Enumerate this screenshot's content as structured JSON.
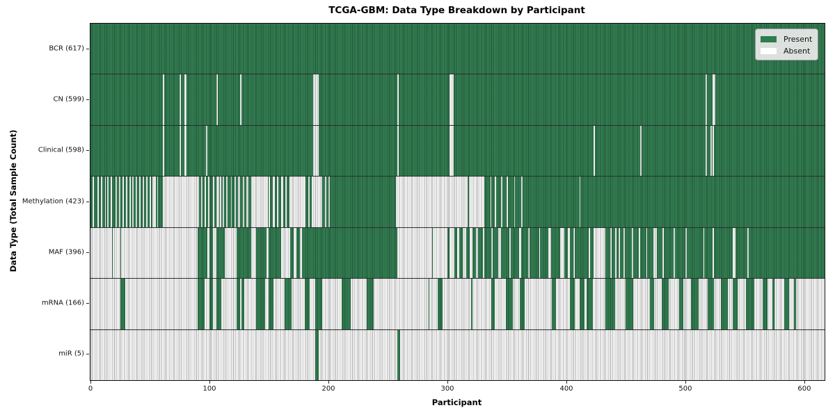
{
  "title": "TCGA-GBM: Data Type Breakdown by Participant",
  "x_axis": {
    "label": "Participant",
    "ticks": [
      0,
      100,
      200,
      300,
      400,
      500,
      600
    ]
  },
  "y_axis": {
    "label": "Data Type (Total Sample Count)"
  },
  "legend": {
    "items": [
      {
        "label": "Present",
        "state": "present"
      },
      {
        "label": "Absent",
        "state": "absent"
      }
    ]
  },
  "colors": {
    "present": "#2e7d4f",
    "absent": "#ffffff",
    "spine": "#0a0a0a",
    "legend_bg": "#eaeaea"
  },
  "chart_data": {
    "type": "heatmap",
    "title": "TCGA-GBM: Data Type Breakdown by Participant",
    "xlabel": "Participant",
    "ylabel": "Data Type (Total Sample Count)",
    "x_range": [
      0,
      617
    ],
    "n_participants": 617,
    "legend_position": "upper right",
    "states": [
      "Present",
      "Absent"
    ],
    "rows": [
      {
        "name": "BCR",
        "label": "BCR (617)",
        "present_count": 617,
        "base": "present",
        "runs_absent": []
      },
      {
        "name": "CN",
        "label": "CN (599)",
        "present_count": 599,
        "base": "present",
        "runs_absent": [
          [
            61,
            1
          ],
          [
            75,
            1
          ],
          [
            79,
            2
          ],
          [
            106,
            1
          ],
          [
            126,
            1
          ],
          [
            187,
            5
          ],
          [
            258,
            1
          ],
          [
            302,
            3
          ],
          [
            517,
            1
          ],
          [
            523,
            2
          ]
        ]
      },
      {
        "name": "Clinical",
        "label": "Clinical (598)",
        "present_count": 598,
        "base": "present",
        "runs_absent": [
          [
            61,
            1
          ],
          [
            75,
            1
          ],
          [
            79,
            2
          ],
          [
            97,
            1
          ],
          [
            187,
            5
          ],
          [
            258,
            1
          ],
          [
            302,
            3
          ],
          [
            423,
            1
          ],
          [
            462,
            1
          ],
          [
            517,
            1
          ],
          [
            521,
            1
          ],
          [
            523,
            1
          ]
        ]
      },
      {
        "name": "Methylation",
        "label": "Methylation (423)",
        "present_count": 423,
        "base": "present",
        "runs_absent": [
          [
            2,
            1
          ],
          [
            6,
            1
          ],
          [
            9,
            1
          ],
          [
            12,
            1
          ],
          [
            14,
            1
          ],
          [
            17,
            1
          ],
          [
            21,
            1
          ],
          [
            24,
            1
          ],
          [
            27,
            1
          ],
          [
            30,
            1
          ],
          [
            33,
            1
          ],
          [
            35,
            1
          ],
          [
            38,
            1
          ],
          [
            41,
            1
          ],
          [
            44,
            1
          ],
          [
            47,
            1
          ],
          [
            50,
            1
          ],
          [
            52,
            3
          ],
          [
            56,
            1
          ],
          [
            61,
            30
          ],
          [
            93,
            1
          ],
          [
            96,
            1
          ],
          [
            99,
            1
          ],
          [
            103,
            1
          ],
          [
            106,
            2
          ],
          [
            109,
            1
          ],
          [
            111,
            1
          ],
          [
            114,
            1
          ],
          [
            118,
            1
          ],
          [
            121,
            1
          ],
          [
            124,
            2
          ],
          [
            128,
            1
          ],
          [
            131,
            2
          ],
          [
            135,
            14
          ],
          [
            150,
            1
          ],
          [
            153,
            2
          ],
          [
            157,
            1
          ],
          [
            160,
            2
          ],
          [
            164,
            1
          ],
          [
            167,
            14
          ],
          [
            183,
            1
          ],
          [
            186,
            9
          ],
          [
            197,
            1
          ],
          [
            200,
            1
          ],
          [
            257,
            60
          ],
          [
            318,
            13
          ],
          [
            336,
            1
          ],
          [
            340,
            1
          ],
          [
            345,
            1
          ],
          [
            350,
            1
          ],
          [
            356,
            1
          ],
          [
            362,
            1
          ],
          [
            411,
            1
          ]
        ]
      },
      {
        "name": "MAF",
        "label": "MAF (396)",
        "present_count": 396,
        "base": "present",
        "runs_absent": [
          [
            0,
            18
          ],
          [
            19,
            6
          ],
          [
            26,
            64
          ],
          [
            98,
            2
          ],
          [
            103,
            3
          ],
          [
            113,
            10
          ],
          [
            135,
            4
          ],
          [
            148,
            2
          ],
          [
            160,
            8
          ],
          [
            171,
            2
          ],
          [
            176,
            2
          ],
          [
            258,
            29
          ],
          [
            288,
            12
          ],
          [
            302,
            4
          ],
          [
            308,
            2
          ],
          [
            313,
            3
          ],
          [
            319,
            2
          ],
          [
            324,
            2
          ],
          [
            330,
            1
          ],
          [
            337,
            1
          ],
          [
            343,
            2
          ],
          [
            352,
            1
          ],
          [
            360,
            2
          ],
          [
            368,
            1
          ],
          [
            377,
            1
          ],
          [
            385,
            2
          ],
          [
            395,
            3
          ],
          [
            401,
            2
          ],
          [
            406,
            1
          ],
          [
            419,
            1
          ],
          [
            423,
            10
          ],
          [
            437,
            1
          ],
          [
            441,
            1
          ],
          [
            444,
            1
          ],
          [
            448,
            1
          ],
          [
            455,
            1
          ],
          [
            461,
            1
          ],
          [
            467,
            1
          ],
          [
            473,
            3
          ],
          [
            481,
            1
          ],
          [
            490,
            1
          ],
          [
            500,
            1
          ],
          [
            515,
            1
          ],
          [
            523,
            1
          ],
          [
            540,
            2
          ],
          [
            552,
            1
          ]
        ]
      },
      {
        "name": "mRNA",
        "label": "mRNA (166)",
        "present_count": 166,
        "base": "absent",
        "runs_present": [
          [
            25,
            4
          ],
          [
            90,
            6
          ],
          [
            100,
            3
          ],
          [
            106,
            4
          ],
          [
            123,
            3
          ],
          [
            127,
            2
          ],
          [
            139,
            8
          ],
          [
            150,
            4
          ],
          [
            163,
            6
          ],
          [
            180,
            4
          ],
          [
            189,
            6
          ],
          [
            211,
            8
          ],
          [
            232,
            6
          ],
          [
            284,
            1
          ],
          [
            292,
            4
          ],
          [
            320,
            1
          ],
          [
            337,
            3
          ],
          [
            349,
            6
          ],
          [
            361,
            4
          ],
          [
            388,
            3
          ],
          [
            403,
            4
          ],
          [
            411,
            4
          ],
          [
            417,
            5
          ],
          [
            433,
            8
          ],
          [
            450,
            6
          ],
          [
            470,
            4
          ],
          [
            480,
            6
          ],
          [
            495,
            3
          ],
          [
            505,
            6
          ],
          [
            519,
            5
          ],
          [
            530,
            6
          ],
          [
            540,
            4
          ],
          [
            551,
            7
          ],
          [
            565,
            4
          ],
          [
            573,
            2
          ],
          [
            583,
            4
          ],
          [
            591,
            2
          ]
        ]
      },
      {
        "name": "miR",
        "label": "miR (5)",
        "present_count": 5,
        "base": "absent",
        "runs_present": [
          [
            189,
            3
          ],
          [
            258,
            2
          ]
        ]
      }
    ]
  }
}
